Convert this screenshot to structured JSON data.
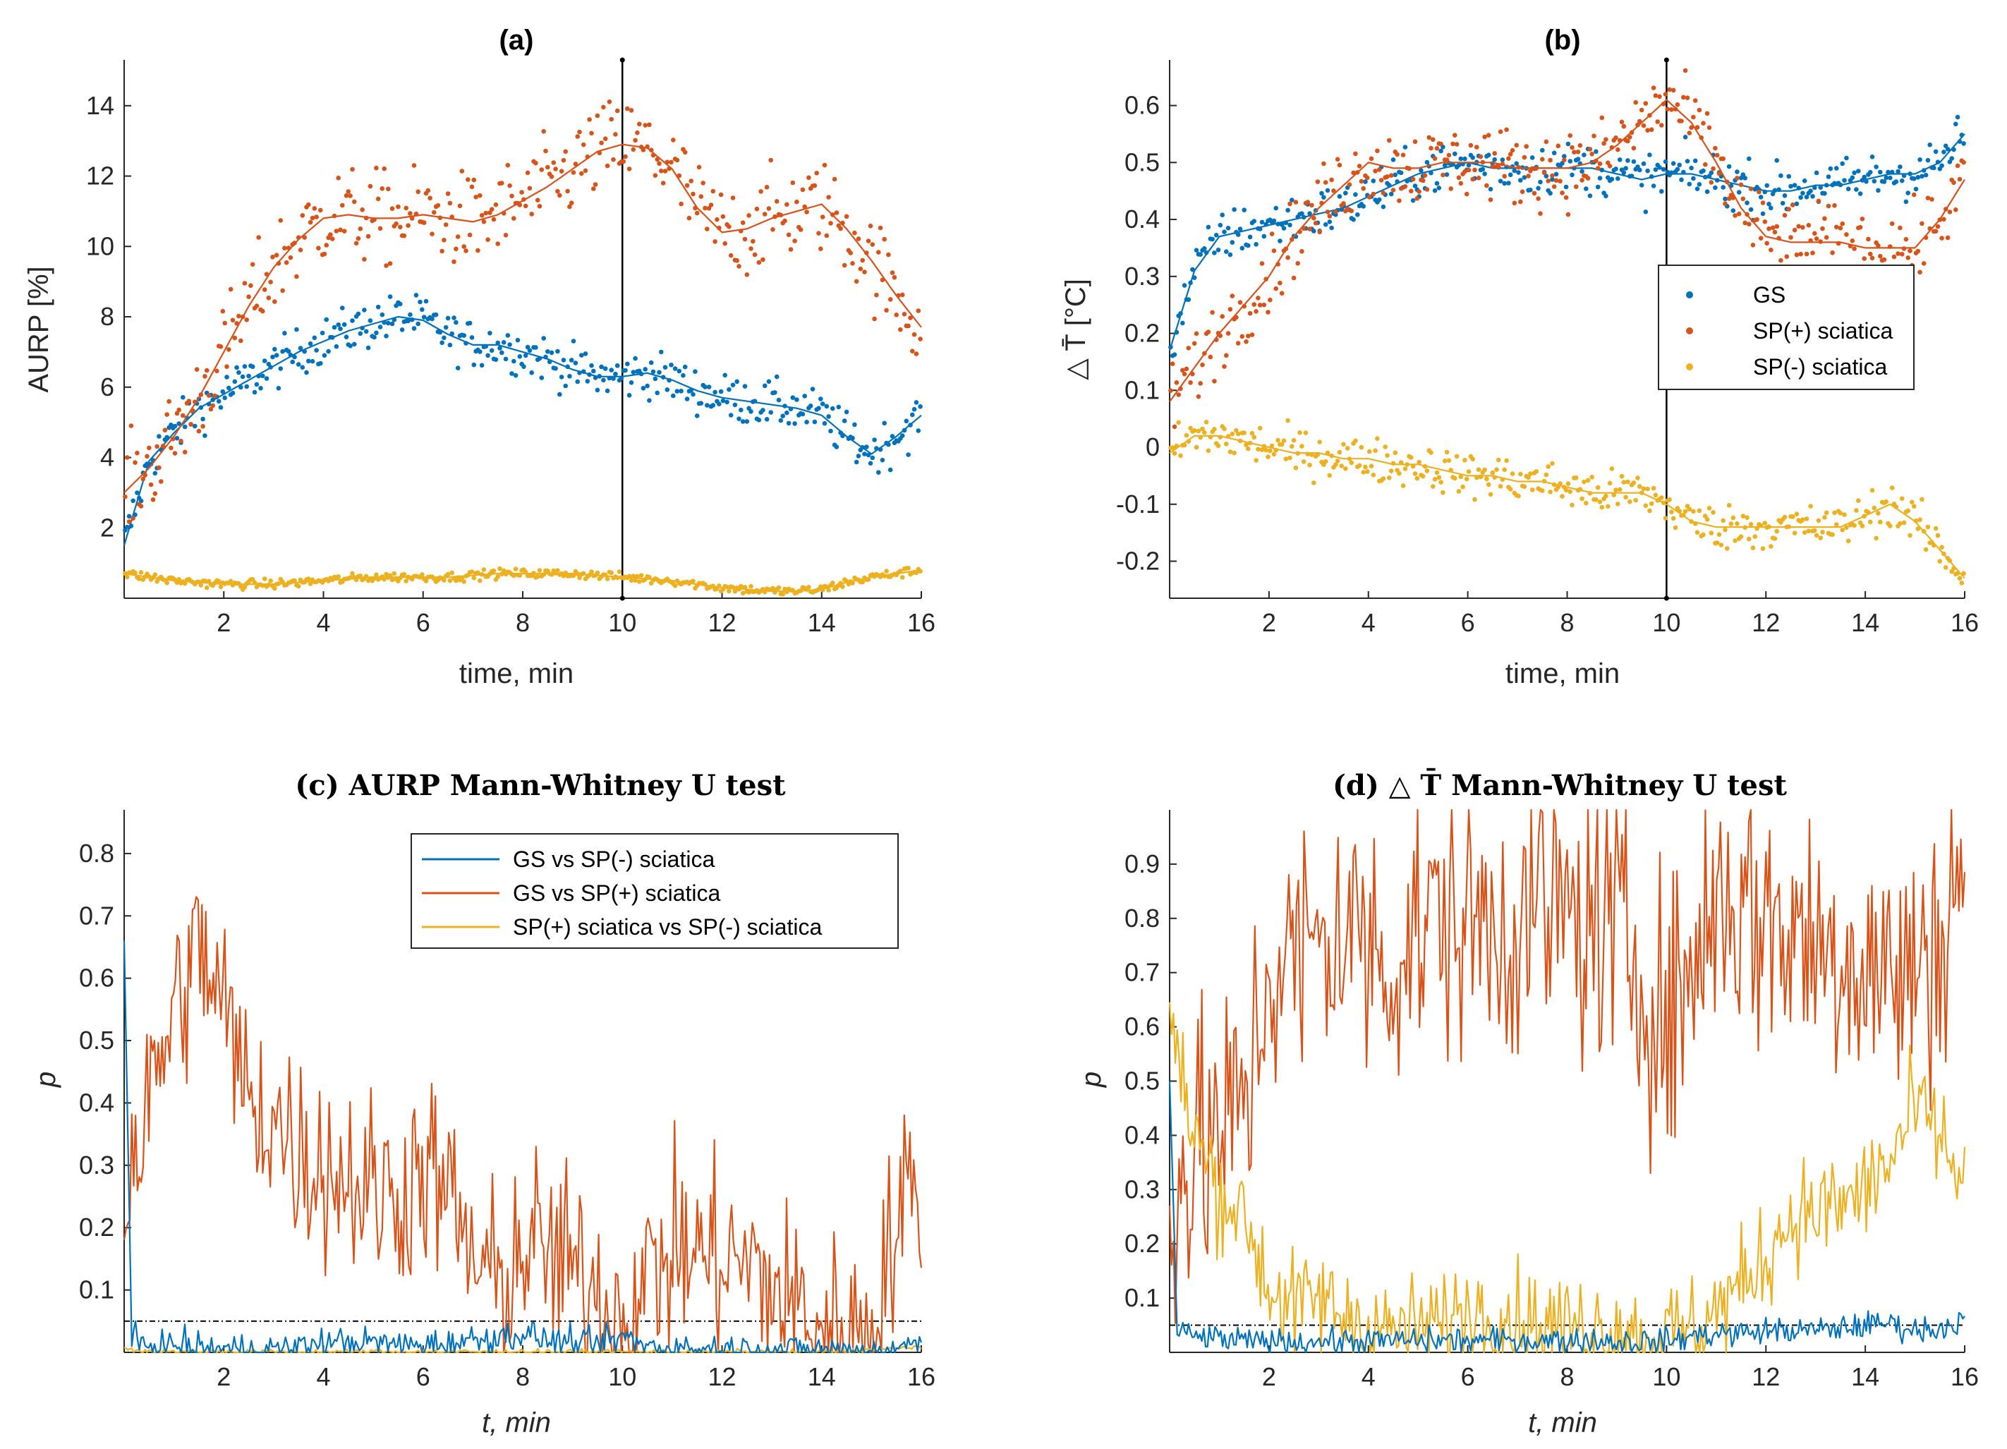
{
  "colors": {
    "blue": "#0072BD",
    "orange": "#D95319",
    "yellow": "#EDB120",
    "axis": "#262626"
  },
  "chart_data": [
    {
      "panel": "a",
      "type": "scatter",
      "title": "(a)",
      "xlabel": "time, min",
      "ylabel": "AURP  [%]",
      "xlim": [
        0,
        16
      ],
      "ylim": [
        0,
        15.3
      ],
      "xticks": [
        2,
        4,
        6,
        8,
        10,
        12,
        14,
        16
      ],
      "yticks": [
        2,
        4,
        6,
        8,
        10,
        12,
        14
      ],
      "vline_x": 10,
      "x": [
        0,
        0.5,
        1,
        1.5,
        2,
        2.5,
        3,
        3.5,
        4,
        4.5,
        5,
        5.5,
        6,
        6.5,
        7,
        7.5,
        8,
        8.5,
        9,
        9.5,
        10,
        10.5,
        11,
        11.5,
        12,
        12.5,
        13,
        13.5,
        14,
        14.5,
        15,
        15.5,
        16
      ],
      "series": [
        {
          "name": "GS",
          "color": "blue",
          "values": [
            1.5,
            3.9,
            4.7,
            5.4,
            5.8,
            6.2,
            6.6,
            7.0,
            7.3,
            7.6,
            7.8,
            8.0,
            7.9,
            7.5,
            7.2,
            7.2,
            7.0,
            6.8,
            6.5,
            6.3,
            6.3,
            6.4,
            6.2,
            5.9,
            5.7,
            5.6,
            5.5,
            5.4,
            5.2,
            4.6,
            4.1,
            4.6,
            5.2
          ],
          "noise": 0.6
        },
        {
          "name": "SP(+) sciatica",
          "color": "orange",
          "values": [
            3.0,
            3.7,
            4.6,
            5.7,
            7.0,
            8.3,
            9.4,
            10.2,
            10.8,
            10.9,
            10.8,
            10.8,
            10.9,
            10.8,
            10.7,
            10.9,
            11.3,
            11.7,
            12.2,
            12.7,
            12.9,
            12.8,
            12.2,
            11.1,
            10.4,
            10.5,
            10.8,
            11.0,
            11.2,
            10.5,
            9.6,
            8.6,
            7.7
          ],
          "noise": 1.2
        },
        {
          "name": "SP(-) sciatica",
          "color": "yellow",
          "values": [
            0.7,
            0.6,
            0.5,
            0.45,
            0.4,
            0.4,
            0.4,
            0.45,
            0.5,
            0.55,
            0.6,
            0.6,
            0.6,
            0.6,
            0.65,
            0.7,
            0.7,
            0.7,
            0.7,
            0.65,
            0.6,
            0.55,
            0.5,
            0.4,
            0.3,
            0.25,
            0.2,
            0.2,
            0.25,
            0.45,
            0.6,
            0.7,
            0.8
          ],
          "noise": 0.12
        }
      ]
    },
    {
      "panel": "b",
      "type": "scatter",
      "title": "(b)",
      "xlabel": "time, min",
      "ylabel": "△ T̄ [°C]",
      "xlim": [
        0,
        16
      ],
      "ylim": [
        -0.265,
        0.68
      ],
      "xticks": [
        2,
        4,
        6,
        8,
        10,
        12,
        14,
        16
      ],
      "yticks": [
        -0.2,
        -0.1,
        0,
        0.1,
        0.2,
        0.3,
        0.4,
        0.5,
        0.6
      ],
      "ytick_labels": [
        "-0.2",
        "-0.1",
        "0",
        "0.1",
        "0.2",
        "0.3",
        "0.4",
        "0.5",
        "0.6"
      ],
      "vline_x": 10,
      "legend": {
        "position": "middle-right",
        "entries": [
          "GS",
          "SP(+) sciatica",
          "SP(-) sciatica"
        ]
      },
      "x": [
        0,
        0.5,
        1,
        1.5,
        2,
        2.5,
        3,
        3.5,
        4,
        4.5,
        5,
        5.5,
        6,
        6.5,
        7,
        7.5,
        8,
        8.5,
        9,
        9.5,
        10,
        10.5,
        11,
        11.5,
        12,
        12.5,
        13,
        13.5,
        14,
        14.5,
        15,
        15.5,
        16
      ],
      "series": [
        {
          "name": "GS",
          "color": "blue",
          "values": [
            0.17,
            0.31,
            0.37,
            0.38,
            0.39,
            0.4,
            0.41,
            0.42,
            0.44,
            0.46,
            0.48,
            0.49,
            0.5,
            0.49,
            0.49,
            0.49,
            0.49,
            0.49,
            0.48,
            0.47,
            0.48,
            0.48,
            0.47,
            0.46,
            0.45,
            0.45,
            0.46,
            0.46,
            0.47,
            0.48,
            0.48,
            0.5,
            0.55
          ],
          "noise": 0.04
        },
        {
          "name": "SP(+) sciatica",
          "color": "orange",
          "values": [
            0.08,
            0.14,
            0.2,
            0.25,
            0.3,
            0.37,
            0.42,
            0.46,
            0.5,
            0.49,
            0.49,
            0.5,
            0.5,
            0.5,
            0.49,
            0.49,
            0.49,
            0.5,
            0.53,
            0.57,
            0.61,
            0.57,
            0.5,
            0.42,
            0.37,
            0.36,
            0.36,
            0.36,
            0.35,
            0.35,
            0.35,
            0.4,
            0.47
          ],
          "noise": 0.06
        },
        {
          "name": "SP(-) sciatica",
          "color": "yellow",
          "values": [
            -0.01,
            0.02,
            0.02,
            0.01,
            0.0,
            -0.01,
            -0.01,
            -0.02,
            -0.02,
            -0.03,
            -0.03,
            -0.04,
            -0.05,
            -0.05,
            -0.06,
            -0.06,
            -0.07,
            -0.08,
            -0.08,
            -0.08,
            -0.1,
            -0.13,
            -0.14,
            -0.14,
            -0.14,
            -0.14,
            -0.14,
            -0.14,
            -0.12,
            -0.1,
            -0.13,
            -0.18,
            -0.23
          ],
          "noise": 0.035
        }
      ]
    },
    {
      "panel": "c",
      "type": "line",
      "title": "(c) AURP   Mann-Whitney U test",
      "xlabel": "t, min",
      "ylabel": "p",
      "xlim": [
        0,
        16
      ],
      "ylim": [
        0,
        0.87
      ],
      "xticks": [
        2,
        4,
        6,
        8,
        10,
        12,
        14,
        16
      ],
      "yticks": [
        0.1,
        0.2,
        0.3,
        0.4,
        0.5,
        0.6,
        0.7,
        0.8
      ],
      "threshold": 0.05,
      "legend": {
        "position": "top-center",
        "entries": [
          "GS vs SP(-) sciatica",
          "GS vs SP(+) sciatica",
          "SP(+) sciatica vs SP(-) sciatica"
        ]
      },
      "x": [
        0,
        0.5,
        1,
        1.5,
        2,
        2.5,
        3,
        3.5,
        4,
        4.5,
        5,
        5.5,
        6,
        6.5,
        7,
        7.5,
        8,
        8.5,
        9,
        9.5,
        10,
        10.5,
        11,
        11.5,
        12,
        12.5,
        13,
        13.5,
        14,
        14.5,
        15,
        15.5,
        16
      ],
      "series": [
        {
          "name": "GS vs SP(-) sciatica",
          "color": "blue",
          "values": [
            0.02,
            0.01,
            0.01,
            0.008,
            0.006,
            0.005,
            0.005,
            0.008,
            0.015,
            0.018,
            0.015,
            0.012,
            0.012,
            0.015,
            0.02,
            0.025,
            0.03,
            0.02,
            0.015,
            0.012,
            0.025,
            0.01,
            0.008,
            0.005,
            0.005,
            0.005,
            0.004,
            0.004,
            0.004,
            0.003,
            0.003,
            0.004,
            0.02
          ],
          "noise": 0.012,
          "spike": 0.66
        },
        {
          "name": "GS vs SP(+) sciatica",
          "color": "orange",
          "values": [
            0.25,
            0.4,
            0.55,
            0.65,
            0.55,
            0.4,
            0.38,
            0.32,
            0.3,
            0.28,
            0.26,
            0.25,
            0.3,
            0.25,
            0.15,
            0.1,
            0.17,
            0.16,
            0.13,
            0.1,
            0.05,
            0.12,
            0.16,
            0.16,
            0.15,
            0.14,
            0.1,
            0.07,
            0.04,
            0.02,
            0.05,
            0.2,
            0.3
          ],
          "noise": 0.08
        },
        {
          "name": "SP(+) sciatica vs SP(-) sciatica",
          "color": "yellow",
          "values": [
            0.005,
            0.002,
            0.001,
            0.001,
            0.001,
            0.001,
            0.001,
            0.001,
            0.001,
            0.001,
            0.001,
            0.001,
            0.001,
            0.001,
            0.001,
            0.001,
            0.001,
            0.001,
            0.001,
            0.001,
            0.001,
            0.001,
            0.001,
            0.001,
            0.001,
            0.001,
            0.001,
            0.001,
            0.001,
            0.002,
            0.004,
            0.006,
            0.01
          ],
          "noise": 0.002
        }
      ]
    },
    {
      "panel": "d",
      "type": "line",
      "title": "(d) △ T̄ Mann-Whitney U test",
      "xlabel": "t, min",
      "ylabel": "p",
      "xlim": [
        0,
        16
      ],
      "ylim": [
        0,
        1
      ],
      "xticks": [
        2,
        4,
        6,
        8,
        10,
        12,
        14,
        16
      ],
      "yticks": [
        0.1,
        0.2,
        0.3,
        0.4,
        0.5,
        0.6,
        0.7,
        0.8,
        0.9
      ],
      "threshold": 0.05,
      "x": [
        0,
        0.5,
        1,
        1.5,
        2,
        2.5,
        3,
        3.5,
        4,
        4.5,
        5,
        5.5,
        6,
        6.5,
        7,
        7.5,
        8,
        8.5,
        9,
        9.5,
        10,
        10.5,
        11,
        11.5,
        12,
        12.5,
        13,
        13.5,
        14,
        14.5,
        15,
        15.5,
        16
      ],
      "series": [
        {
          "name": "GS vs SP(-) sciatica",
          "color": "blue",
          "values": [
            0.04,
            0.03,
            0.025,
            0.02,
            0.02,
            0.02,
            0.02,
            0.02,
            0.02,
            0.022,
            0.022,
            0.022,
            0.022,
            0.022,
            0.022,
            0.022,
            0.022,
            0.022,
            0.02,
            0.02,
            0.02,
            0.03,
            0.035,
            0.035,
            0.04,
            0.04,
            0.04,
            0.045,
            0.05,
            0.055,
            0.04,
            0.045,
            0.06
          ],
          "noise": 0.012,
          "spike": 0.5
        },
        {
          "name": "GS vs SP(+) sciatica",
          "color": "orange",
          "values": [
            0.3,
            0.35,
            0.4,
            0.45,
            0.7,
            0.72,
            0.75,
            0.78,
            0.75,
            0.72,
            0.78,
            0.8,
            0.8,
            0.78,
            0.8,
            0.82,
            0.8,
            0.78,
            0.78,
            0.7,
            0.6,
            0.7,
            0.85,
            0.82,
            0.8,
            0.78,
            0.75,
            0.75,
            0.72,
            0.7,
            0.7,
            0.75,
            0.95
          ],
          "noise": 0.13
        },
        {
          "name": "SP(+) sciatica vs SP(-) sciatica",
          "color": "yellow",
          "values": [
            0.6,
            0.4,
            0.3,
            0.25,
            0.12,
            0.08,
            0.1,
            0.07,
            0.05,
            0.04,
            0.04,
            0.05,
            0.08,
            0.07,
            0.06,
            0.05,
            0.05,
            0.05,
            0.04,
            0.03,
            0.03,
            0.04,
            0.08,
            0.12,
            0.18,
            0.25,
            0.26,
            0.27,
            0.3,
            0.35,
            0.45,
            0.4,
            0.3
          ],
          "noise": 0.05
        }
      ]
    }
  ]
}
